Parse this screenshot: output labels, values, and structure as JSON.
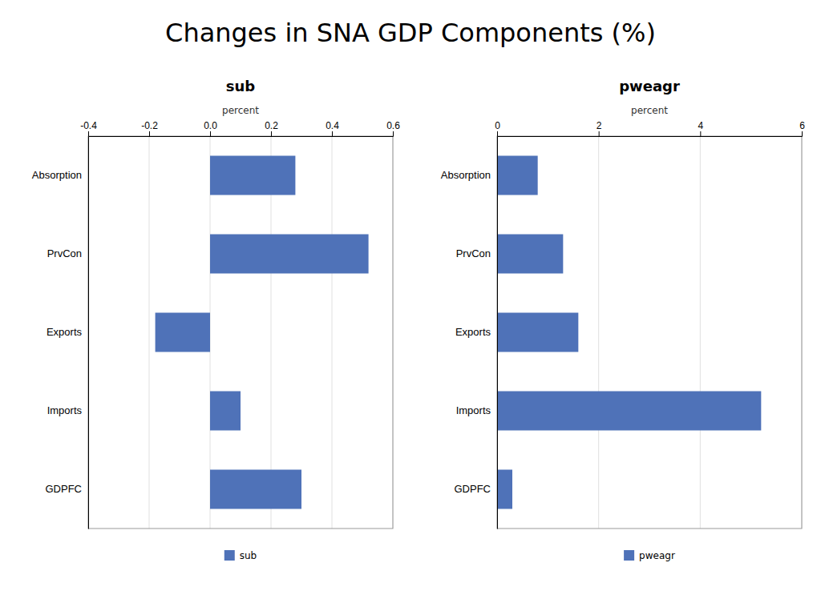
{
  "title": "Changes in SNA GDP Components (%)",
  "chart_data": [
    {
      "type": "bar",
      "orientation": "horizontal",
      "title": "sub",
      "categories": [
        "Absorption",
        "PrvCon",
        "Exports",
        "Imports",
        "GDPFC"
      ],
      "series": [
        {
          "name": "sub",
          "color": "#4F72B8",
          "values": [
            0.28,
            0.52,
            -0.18,
            0.1,
            0.3
          ]
        }
      ],
      "xlabel": "percent",
      "xlim": [
        -0.4,
        0.6
      ],
      "xticks": [
        -0.4,
        -0.2,
        {
          "value": 0,
          "label": "0.0"
        },
        0.2,
        0.4,
        0.6
      ],
      "grid": true,
      "legend": "bottom"
    },
    {
      "type": "bar",
      "orientation": "horizontal",
      "title": "pweagr",
      "categories": [
        "Absorption",
        "PrvCon",
        "Exports",
        "Imports",
        "GDPFC"
      ],
      "series": [
        {
          "name": "pweagr",
          "color": "#4F72B8",
          "values": [
            0.8,
            1.3,
            1.6,
            5.2,
            0.3
          ]
        }
      ],
      "xlabel": "percent",
      "xlim": [
        0,
        6
      ],
      "xticks": [
        0,
        2,
        4,
        6
      ],
      "grid": true,
      "legend": "bottom"
    }
  ]
}
